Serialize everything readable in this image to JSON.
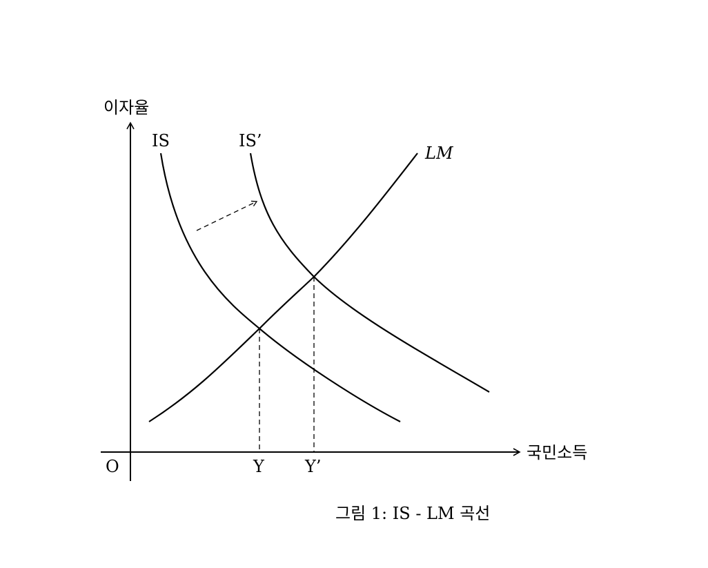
{
  "axes": {
    "y_label": "이자율",
    "x_label": "국민소득",
    "origin_label": "O"
  },
  "curves": {
    "is_label": "IS",
    "is_shifted_label": "IS’",
    "lm_label": "LM"
  },
  "ticks": {
    "y_label": "Y",
    "y_shifted_label": "Y’"
  },
  "caption": "그림 1: IS - LM 곡선",
  "colors": {
    "line": "#000000",
    "background": "#ffffff"
  }
}
